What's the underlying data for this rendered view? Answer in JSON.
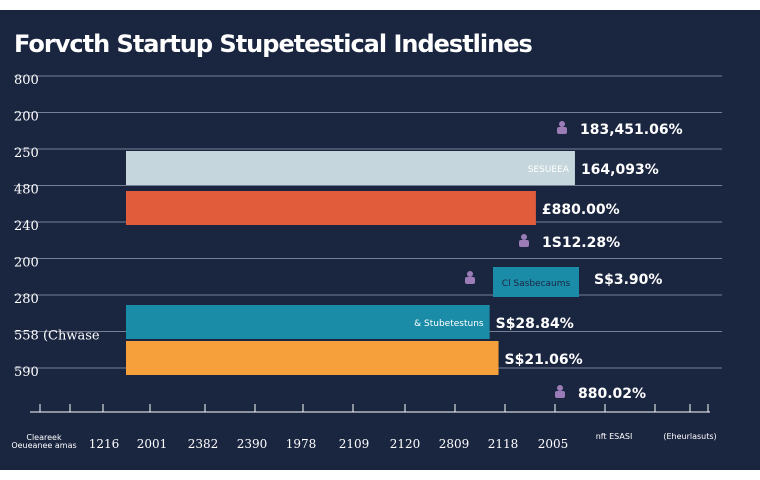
{
  "chart_data": {
    "type": "bar",
    "orientation": "horizontal",
    "title": "Forvcth Startup Stupetestical Indestlines",
    "y_tick_labels": [
      "800",
      "200",
      "250",
      "480",
      "240",
      "200",
      "280",
      "558 (Chwase",
      "590"
    ],
    "x_tick_labels": [
      "1216",
      "2001",
      "2382",
      "2390",
      "1978",
      "2109",
      "2120",
      "2809",
      "2118",
      "2005"
    ],
    "x_left_label_lines": [
      "Cleareek",
      "Oeueanee amas"
    ],
    "x_right_labels": [
      "nft ESASI",
      "(Eheurlasuts)"
    ],
    "bars": [
      {
        "value": 2005,
        "color": "#c5d6dc",
        "inner_label": "SESUEEA",
        "outer_label": "164,093%",
        "inner_label_color": "#ffffff"
      },
      {
        "value": 1935,
        "color": "#e05c3a",
        "inner_label": "",
        "outer_label": "£880.00%",
        "inner_label_color": "#ffffff"
      },
      {
        "value": 1852,
        "color": "#1a8ca8",
        "inner_label": "& Stubetestuns",
        "outer_label": "S$28.84%",
        "inner_label_color": "#ffffff"
      },
      {
        "value": 1868,
        "color": "#f5a03a",
        "inner_label": "",
        "outer_label": "S$21.06%",
        "inner_label_color": "#ffffff"
      }
    ],
    "callouts": [
      {
        "label": "183,451.06%",
        "icon": "person-icon"
      },
      {
        "label": "1S12.28%",
        "icon": "person-icon"
      },
      {
        "box_label": "Cl Sasbecaums",
        "label": "S$3.90%",
        "icon": "person-icon"
      },
      {
        "label": "880.02%",
        "icon": "person-icon"
      }
    ],
    "xlim": [
      1200,
      2240
    ],
    "grid": true,
    "legend": "none"
  }
}
